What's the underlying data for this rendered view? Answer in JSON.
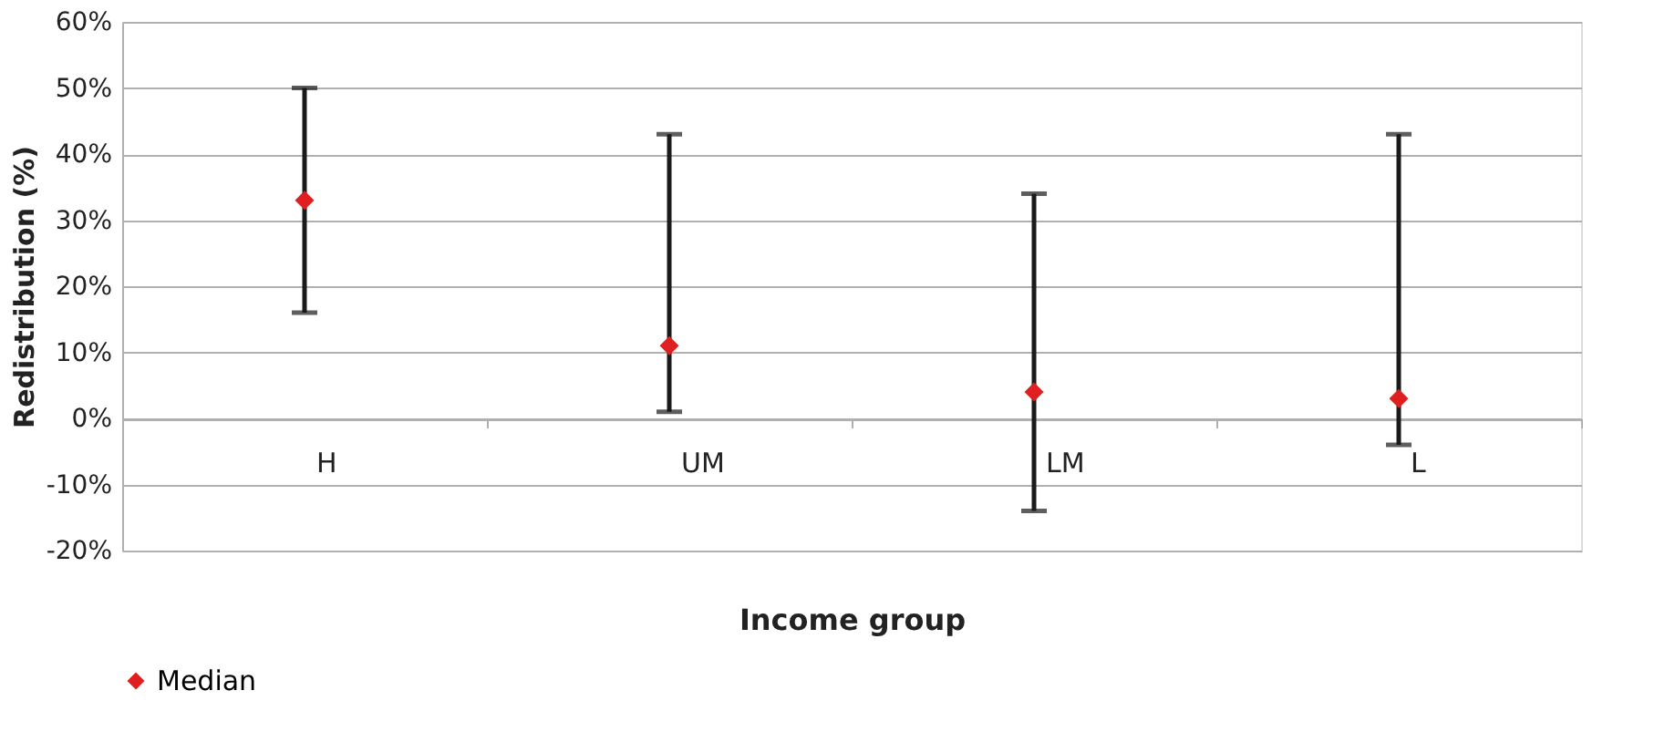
{
  "chart_data": {
    "type": "scatter",
    "xlabel": "Income group",
    "ylabel": "Redistribution (%)",
    "categories": [
      "H",
      "UM",
      "LM",
      "L"
    ],
    "series": [
      {
        "name": "Median",
        "color": "#e02020",
        "values": [
          33,
          11,
          4,
          3
        ],
        "errors": [
          [
            16,
            50
          ],
          [
            1,
            43
          ],
          [
            -14,
            34
          ],
          [
            -4,
            43
          ]
        ]
      }
    ],
    "ylim": [
      -20,
      60
    ],
    "yticks": [
      {
        "value": -20,
        "label": "-20%"
      },
      {
        "value": -10,
        "label": "-10%"
      },
      {
        "value": 0,
        "label": "0%"
      },
      {
        "value": 10,
        "label": "10%"
      },
      {
        "value": 20,
        "label": "20%"
      },
      {
        "value": 30,
        "label": "30%"
      },
      {
        "value": 40,
        "label": "40%"
      },
      {
        "value": 50,
        "label": "50%"
      },
      {
        "value": 60,
        "label": "60%"
      }
    ],
    "grid": "y",
    "legend": "bottom",
    "marker": "diamond"
  }
}
